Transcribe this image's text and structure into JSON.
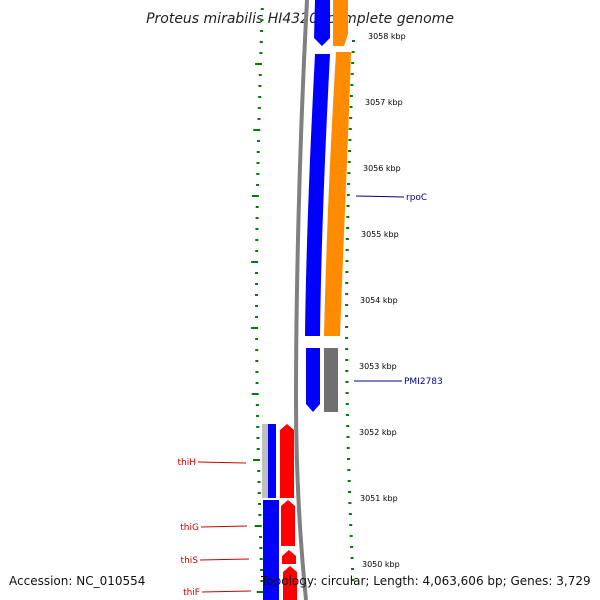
{
  "title": "Proteus mirabilis HI4320, complete genome",
  "accession_line": "Accession: NC_010554",
  "topology_line": "Topology: circular; Length: 4,063,606 bp; Genes: 3,729",
  "colors": {
    "forward_cds": "#ff8c00",
    "reverse_cds": "#0000ff",
    "other_feature": "#707070",
    "tick": "#008000",
    "forward_gene_label": "#00008b",
    "reverse_gene_label": "#cc0000",
    "backbone": "#808080"
  },
  "ruler": {
    "unit": "kbp",
    "ticks": [
      "3058 kbp",
      "3057 kbp",
      "3056 kbp",
      "3055 kbp",
      "3054 kbp",
      "3053 kbp",
      "3052 kbp",
      "3051 kbp",
      "3050 kbp"
    ]
  },
  "gene_labels": [
    {
      "name": "rpoC",
      "strand": "forward"
    },
    {
      "name": "PMI2783",
      "strand": "forward"
    },
    {
      "name": "thiH",
      "strand": "reverse"
    },
    {
      "name": "thiG",
      "strand": "reverse"
    },
    {
      "name": "thiS",
      "strand": "reverse"
    },
    {
      "name": "thiF",
      "strand": "reverse"
    }
  ]
}
